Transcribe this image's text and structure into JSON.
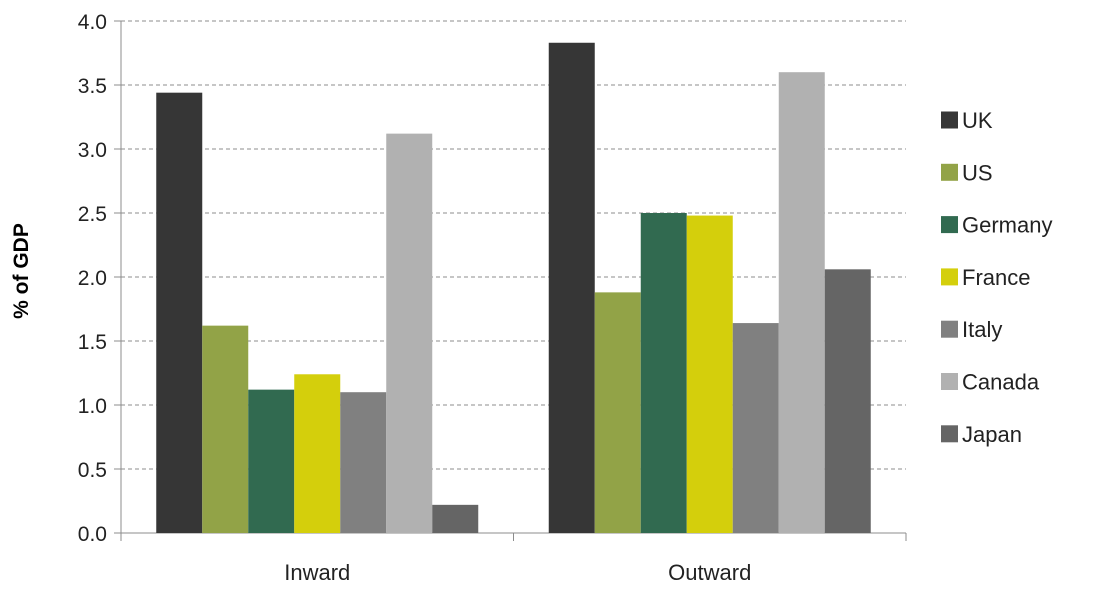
{
  "chart_data": {
    "type": "bar",
    "title": "",
    "xlabel": "",
    "ylabel": "% of GDP",
    "ylim": [
      0,
      4.0
    ],
    "yticks": [
      "0.0",
      "0.5",
      "1.0",
      "1.5",
      "2.0",
      "2.5",
      "3.0",
      "3.5",
      "4.0"
    ],
    "grid": true,
    "legend_position": "right",
    "categories": [
      "Inward",
      "Outward"
    ],
    "series": [
      {
        "name": "UK",
        "color": "#363636",
        "values": [
          3.44,
          3.83
        ]
      },
      {
        "name": "US",
        "color": "#92a347",
        "values": [
          1.62,
          1.88
        ]
      },
      {
        "name": "Germany",
        "color": "#316a50",
        "values": [
          1.12,
          2.5
        ]
      },
      {
        "name": "France",
        "color": "#d4cf0c",
        "values": [
          1.24,
          2.48
        ]
      },
      {
        "name": "Italy",
        "color": "#808080",
        "values": [
          1.1,
          1.64
        ]
      },
      {
        "name": "Canada",
        "color": "#b1b1b1",
        "values": [
          3.12,
          3.6
        ]
      },
      {
        "name": "Japan",
        "color": "#656565",
        "values": [
          0.22,
          2.06
        ]
      }
    ]
  }
}
